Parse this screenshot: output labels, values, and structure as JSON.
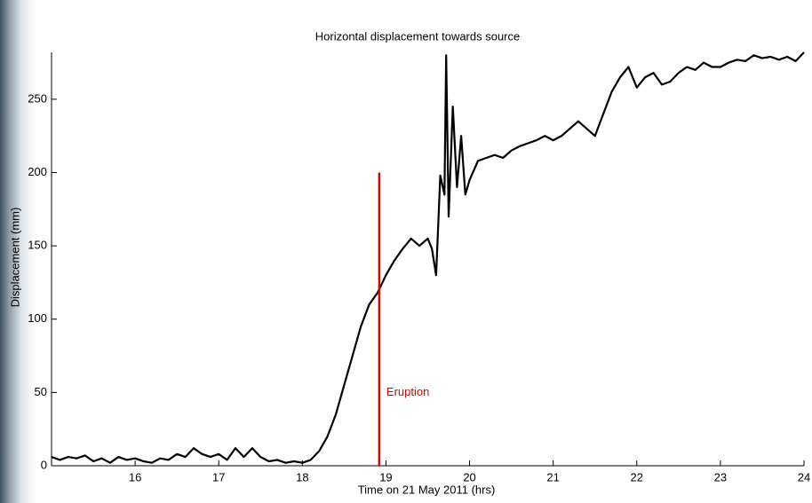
{
  "chart_data": {
    "type": "line",
    "title": "Horizontal displacement towards source",
    "xlabel": "Time on 21 May 2011 (hrs)",
    "ylabel": "Displacement (mm)",
    "xlim": [
      15,
      24
    ],
    "ylim": [
      0,
      282
    ],
    "xticks": [
      16,
      17,
      18,
      19,
      20,
      21,
      22,
      23,
      24
    ],
    "yticks": [
      0,
      50,
      100,
      150,
      200,
      250
    ],
    "series": [
      {
        "name": "Displacement",
        "color": "#000000",
        "x": [
          15.0,
          15.1,
          15.2,
          15.3,
          15.4,
          15.5,
          15.6,
          15.7,
          15.8,
          15.9,
          16.0,
          16.1,
          16.2,
          16.3,
          16.4,
          16.5,
          16.6,
          16.7,
          16.8,
          16.9,
          17.0,
          17.1,
          17.2,
          17.3,
          17.4,
          17.5,
          17.6,
          17.7,
          17.8,
          17.9,
          18.0,
          18.1,
          18.2,
          18.3,
          18.4,
          18.5,
          18.6,
          18.7,
          18.8,
          18.9,
          19.0,
          19.1,
          19.2,
          19.3,
          19.4,
          19.5,
          19.55,
          19.6,
          19.65,
          19.7,
          19.72,
          19.75,
          19.8,
          19.85,
          19.9,
          19.95,
          20.0,
          20.1,
          20.2,
          20.3,
          20.4,
          20.5,
          20.6,
          20.7,
          20.8,
          20.9,
          21.0,
          21.1,
          21.2,
          21.3,
          21.4,
          21.5,
          21.6,
          21.7,
          21.8,
          21.9,
          22.0,
          22.1,
          22.2,
          22.3,
          22.4,
          22.5,
          22.6,
          22.7,
          22.8,
          22.9,
          23.0,
          23.1,
          23.2,
          23.3,
          23.4,
          23.5,
          23.6,
          23.7,
          23.8,
          23.9,
          24.0
        ],
        "values": [
          6,
          4,
          6,
          5,
          7,
          3,
          5,
          2,
          6,
          4,
          5,
          3,
          2,
          5,
          4,
          8,
          6,
          12,
          8,
          6,
          8,
          4,
          12,
          6,
          12,
          6,
          3,
          4,
          2,
          3,
          2,
          4,
          10,
          20,
          35,
          55,
          75,
          95,
          110,
          118,
          130,
          140,
          148,
          155,
          150,
          155,
          148,
          130,
          198,
          185,
          280,
          170,
          245,
          190,
          225,
          185,
          195,
          208,
          210,
          212,
          210,
          215,
          218,
          220,
          222,
          225,
          222,
          225,
          230,
          235,
          230,
          225,
          240,
          255,
          265,
          272,
          258,
          265,
          268,
          260,
          262,
          268,
          272,
          270,
          275,
          272,
          272,
          275,
          277,
          276,
          280,
          278,
          279,
          277,
          279,
          276,
          282
        ]
      }
    ],
    "annotations": [
      {
        "text": "Eruption",
        "x": 18.92,
        "y": 200,
        "color": "#e00000"
      }
    ]
  }
}
